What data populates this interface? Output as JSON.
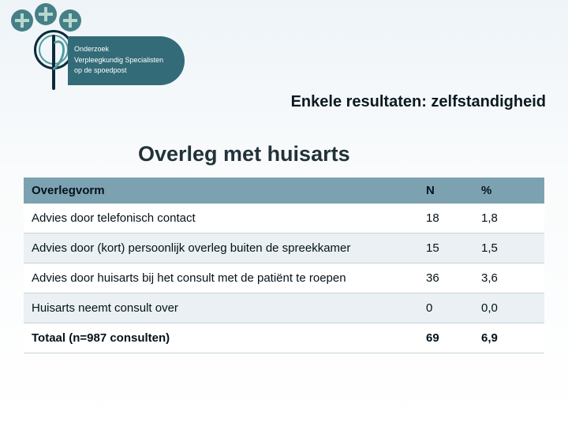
{
  "logo": {
    "line1": "Onderzoek",
    "line2": "Verpleegkundig Specialisten",
    "line3": "op de spoedpost"
  },
  "page_title": "Enkele resultaten: zelfstandigheid",
  "section_title": "Overleg met huisarts",
  "table": {
    "headers": {
      "desc": "Overlegvorm",
      "n": "N",
      "pct": "%"
    },
    "rows": [
      {
        "desc": "Advies door telefonisch contact",
        "n": "18",
        "pct": "1,8"
      },
      {
        "desc": "Advies door (kort) persoonlijk overleg buiten de spreekkamer",
        "n": "15",
        "pct": "1,5"
      },
      {
        "desc": "Advies door huisarts bij het consult met de patiënt te roepen",
        "n": "36",
        "pct": "3,6"
      },
      {
        "desc": "Huisarts neemt consult over",
        "n": "0",
        "pct": "0,0"
      }
    ],
    "total": {
      "desc": "Totaal (n=987 consulten)",
      "n": "69",
      "pct": "6,9"
    }
  },
  "style": {
    "header_bg": "#7ca2b2",
    "row_alt_bg": "#eaf0f3",
    "pill_bg": "#336b78"
  }
}
